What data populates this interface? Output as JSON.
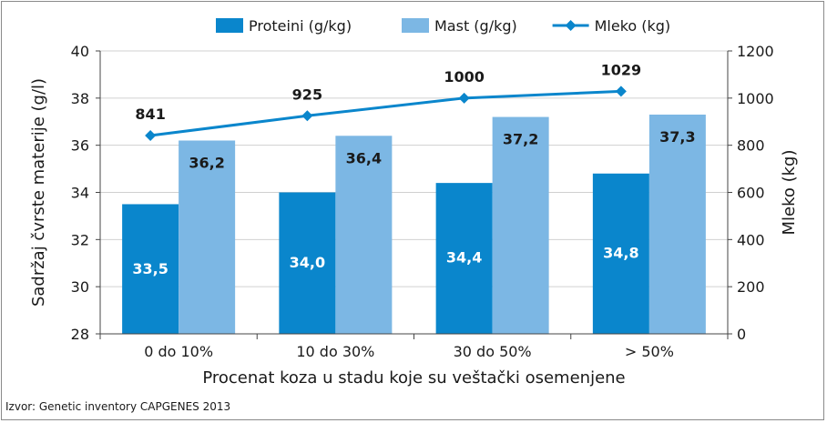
{
  "chart_data": {
    "type": "bar",
    "categories": [
      "0 do 10%",
      "10 do 30%",
      "30 do 50%",
      "> 50%"
    ],
    "series": [
      {
        "name": "Proteini (g/kg)",
        "type": "bar",
        "axis": "left",
        "color": "#0a86cc",
        "values": [
          33.5,
          34.0,
          34.4,
          34.8
        ],
        "labels": [
          "33,5",
          "34,0",
          "34,4",
          "34,8"
        ]
      },
      {
        "name": "Mast (g/kg)",
        "type": "bar",
        "axis": "left",
        "color": "#7cb7e4",
        "values": [
          36.2,
          36.4,
          37.2,
          37.3
        ],
        "labels": [
          "36,2",
          "36,4",
          "37,2",
          "37,3"
        ]
      },
      {
        "name": "Mleko (kg)",
        "type": "line",
        "axis": "right",
        "color": "#0a86cc",
        "marker": "diamond",
        "values": [
          841,
          925,
          1000,
          1029
        ],
        "labels": [
          "841",
          "925",
          "1000",
          "1029"
        ]
      }
    ],
    "xlabel": "Procenat koza u stadu koje su veštački osemenjene",
    "ylabel": "Sadržaj čvrste materije (g/l)",
    "y2label": "Mleko (kg)",
    "ylim": [
      28,
      40
    ],
    "y2lim": [
      0,
      1200
    ],
    "yticks": [
      "28",
      "30",
      "32",
      "34",
      "36",
      "38",
      "40"
    ],
    "y2ticks": [
      "0",
      "200",
      "400",
      "600",
      "800",
      "1000",
      "1200"
    ],
    "grid": true,
    "legend_position": "top"
  },
  "source": "Izvor: Genetic inventory CAPGENES 2013"
}
